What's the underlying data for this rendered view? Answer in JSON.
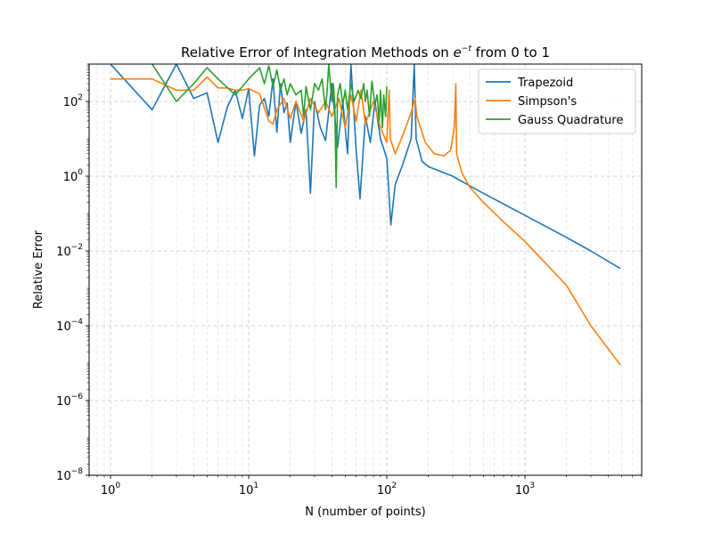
{
  "chart_data": {
    "type": "line",
    "title": "Relative Error of Integration Methods on e^{-t} from 0 to 1",
    "title_parts": {
      "prefix": "Relative Error of Integration Methods on ",
      "base": "e",
      "exponent": "−t",
      "suffix": " from 0 to 1"
    },
    "xlabel": "N (number of points)",
    "ylabel": "Relative Error",
    "x_scale": "log",
    "y_scale": "log",
    "xlim": [
      0.7,
      7000
    ],
    "ylim": [
      1e-08,
      1000
    ],
    "grid": true,
    "legend_position": "top-right",
    "x_ticks": [
      {
        "value": 1,
        "base": "10",
        "exp": "0"
      },
      {
        "value": 10,
        "base": "10",
        "exp": "1"
      },
      {
        "value": 100,
        "base": "10",
        "exp": "2"
      },
      {
        "value": 1000,
        "base": "10",
        "exp": "3"
      }
    ],
    "y_ticks": [
      {
        "value": 1e-08,
        "base": "10",
        "exp": "−8"
      },
      {
        "value": 1e-06,
        "base": "10",
        "exp": "−6"
      },
      {
        "value": 0.0001,
        "base": "10",
        "exp": "−4"
      },
      {
        "value": 0.01,
        "base": "10",
        "exp": "−2"
      },
      {
        "value": 1,
        "base": "10",
        "exp": "0"
      },
      {
        "value": 100,
        "base": "10",
        "exp": "2"
      }
    ],
    "series": [
      {
        "name": "Trapezoid",
        "color": "#1f77b4",
        "points": [
          [
            1,
            1000
          ],
          [
            2,
            60
          ],
          [
            3,
            1000
          ],
          [
            4,
            120
          ],
          [
            5,
            170
          ],
          [
            6,
            8
          ],
          [
            7,
            70
          ],
          [
            8,
            200
          ],
          [
            9,
            35
          ],
          [
            10,
            220
          ],
          [
            11,
            3.5
          ],
          [
            12,
            80
          ],
          [
            13,
            120
          ],
          [
            14,
            40
          ],
          [
            15,
            400
          ],
          [
            16,
            15
          ],
          [
            17,
            300
          ],
          [
            18,
            50
          ],
          [
            19,
            90
          ],
          [
            20,
            8
          ],
          [
            22,
            100
          ],
          [
            24,
            14
          ],
          [
            26,
            60
          ],
          [
            28,
            0.35
          ],
          [
            30,
            100
          ],
          [
            33,
            20
          ],
          [
            36,
            9
          ],
          [
            40,
            300
          ],
          [
            44,
            6
          ],
          [
            48,
            100
          ],
          [
            52,
            4
          ],
          [
            55,
            1000
          ],
          [
            60,
            5
          ],
          [
            64,
            0.25
          ],
          [
            70,
            40
          ],
          [
            76,
            8
          ],
          [
            82,
            100
          ],
          [
            90,
            10
          ],
          [
            100,
            3
          ],
          [
            107,
            0.05
          ],
          [
            115,
            0.6
          ],
          [
            130,
            2
          ],
          [
            150,
            10
          ],
          [
            158,
            1000
          ],
          [
            163,
            10
          ],
          [
            180,
            2.5
          ],
          [
            200,
            1.8
          ],
          [
            300,
            1.0
          ],
          [
            400,
            0.55
          ],
          [
            500,
            0.35
          ],
          [
            1000,
            0.09
          ],
          [
            2000,
            0.023
          ],
          [
            3000,
            0.01
          ],
          [
            4900,
            0.0034
          ]
        ]
      },
      {
        "name": "Simpson's",
        "color": "#ff7f0e",
        "points": [
          [
            1,
            400
          ],
          [
            2,
            400
          ],
          [
            3,
            200
          ],
          [
            4,
            200
          ],
          [
            5,
            450
          ],
          [
            6,
            230
          ],
          [
            7,
            230
          ],
          [
            8,
            200
          ],
          [
            9,
            200
          ],
          [
            10,
            220
          ],
          [
            12,
            160
          ],
          [
            14,
            30
          ],
          [
            15,
            25
          ],
          [
            16,
            60
          ],
          [
            18,
            120
          ],
          [
            20,
            35
          ],
          [
            22,
            100
          ],
          [
            25,
            30
          ],
          [
            28,
            120
          ],
          [
            32,
            50
          ],
          [
            36,
            100
          ],
          [
            40,
            40
          ],
          [
            45,
            120
          ],
          [
            50,
            20
          ],
          [
            55,
            150
          ],
          [
            60,
            30
          ],
          [
            65,
            200
          ],
          [
            70,
            25
          ],
          [
            80,
            100
          ],
          [
            90,
            20
          ],
          [
            100,
            8
          ],
          [
            104,
            200
          ],
          [
            106,
            10
          ],
          [
            115,
            4
          ],
          [
            130,
            12
          ],
          [
            150,
            50
          ],
          [
            160,
            120
          ],
          [
            165,
            40
          ],
          [
            190,
            8
          ],
          [
            220,
            4
          ],
          [
            260,
            3.5
          ],
          [
            290,
            5
          ],
          [
            308,
            20
          ],
          [
            316,
            300
          ],
          [
            320,
            4
          ],
          [
            350,
            1.2
          ],
          [
            400,
            0.5
          ],
          [
            500,
            0.2
          ],
          [
            700,
            0.06
          ],
          [
            1000,
            0.018
          ],
          [
            2000,
            0.0012
          ],
          [
            3000,
            0.0001
          ],
          [
            4900,
            9e-06
          ]
        ]
      },
      {
        "name": "Gauss Quadrature",
        "color": "#2ca02c",
        "points": [
          [
            2,
            1000
          ],
          [
            3,
            100
          ],
          [
            4,
            300
          ],
          [
            5,
            800
          ],
          [
            6,
            400
          ],
          [
            8,
            150
          ],
          [
            10,
            400
          ],
          [
            12,
            800
          ],
          [
            13,
            300
          ],
          [
            14,
            900
          ],
          [
            15,
            250
          ],
          [
            16,
            700
          ],
          [
            17,
            200
          ],
          [
            18,
            400
          ],
          [
            19,
            150
          ],
          [
            20,
            300
          ],
          [
            22,
            150
          ],
          [
            24,
            200
          ],
          [
            25,
            40
          ],
          [
            26,
            250
          ],
          [
            28,
            60
          ],
          [
            30,
            300
          ],
          [
            32,
            200
          ],
          [
            34,
            400
          ],
          [
            36,
            60
          ],
          [
            37,
            200
          ],
          [
            38,
            1000
          ],
          [
            40,
            100
          ],
          [
            41,
            300
          ],
          [
            42,
            80
          ],
          [
            43,
            0.5
          ],
          [
            44,
            150
          ],
          [
            46,
            300
          ],
          [
            48,
            80
          ],
          [
            50,
            200
          ],
          [
            52,
            60
          ],
          [
            55,
            300
          ],
          [
            58,
            100
          ],
          [
            62,
            200
          ],
          [
            65,
            120
          ],
          [
            68,
            300
          ],
          [
            70,
            100
          ],
          [
            72,
            200
          ],
          [
            75,
            40
          ],
          [
            78,
            350
          ],
          [
            82,
            80
          ],
          [
            85,
            150
          ],
          [
            88,
            30
          ],
          [
            90,
            200
          ],
          [
            93,
            20
          ],
          [
            95,
            150
          ],
          [
            98,
            40
          ],
          [
            100,
            250
          ]
        ]
      }
    ]
  }
}
